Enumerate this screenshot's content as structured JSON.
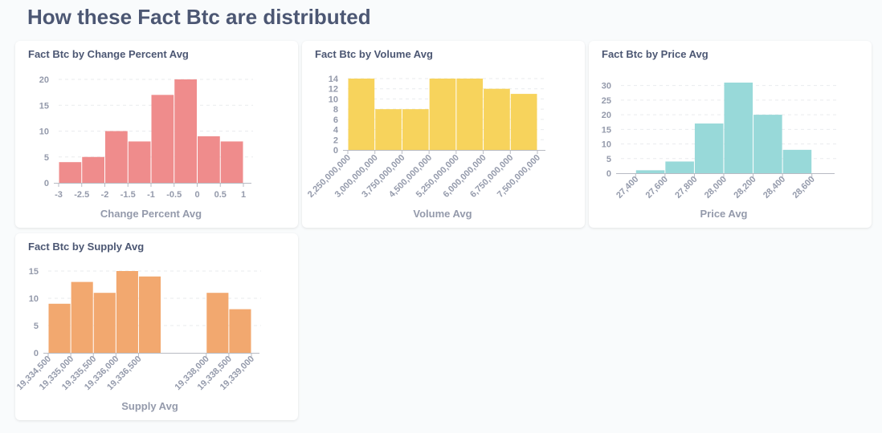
{
  "page": {
    "title": "How these Fact Btc are distributed"
  },
  "chart_data": [
    {
      "type": "bar",
      "title": "Fact Btc by Change Percent Avg",
      "xlabel": "Change Percent Avg",
      "ylabel": "",
      "color": "#ef8c8c",
      "x_ticks": [
        "-3",
        "-2.5",
        "-2",
        "-1.5",
        "-1",
        "-0.5",
        "0",
        "0.5",
        "1"
      ],
      "x_domain": [
        -3,
        1
      ],
      "bin_width": 0.5,
      "bins": [
        -3,
        -2.5,
        -2,
        -1.5,
        -1,
        -0.5,
        0,
        0.5
      ],
      "values": [
        4,
        5,
        10,
        8,
        17,
        20,
        9,
        8
      ],
      "y_ticks": [
        0,
        5,
        10,
        15,
        20
      ],
      "ylim": [
        0,
        20
      ],
      "rotate_ticks": false
    },
    {
      "type": "bar",
      "title": "Fact Btc by Volume Avg",
      "xlabel": "Volume Avg",
      "ylabel": "",
      "color": "#f7d35c",
      "x_ticks": [
        "2,250,000,000",
        "3,000,000,000",
        "3,750,000,000",
        "4,500,000,000",
        "5,250,000,000",
        "6,000,000,000",
        "6,750,000,000",
        "7,500,000,000"
      ],
      "x_domain": [
        2250000000,
        7500000000
      ],
      "bin_width": 750000000,
      "bins": [
        2250000000,
        3000000000,
        3750000000,
        4500000000,
        5250000000,
        6000000000,
        6750000000
      ],
      "values": [
        14,
        8,
        8,
        14,
        14,
        12,
        11
      ],
      "y_ticks": [
        0,
        2,
        4,
        6,
        8,
        10,
        12,
        14
      ],
      "ylim": [
        0,
        14
      ],
      "rotate_ticks": true
    },
    {
      "type": "bar",
      "title": "Fact Btc by Price Avg",
      "xlabel": "Price Avg",
      "ylabel": "",
      "color": "#98d9d9",
      "x_ticks": [
        "27,400",
        "27,600",
        "27,800",
        "28,000",
        "28,200",
        "28,400",
        "28,600"
      ],
      "x_domain": [
        27300,
        28700
      ],
      "bin_width": 200,
      "bins": [
        27400,
        27600,
        27800,
        28000,
        28200,
        28400
      ],
      "values": [
        1,
        4,
        17,
        31,
        20,
        8
      ],
      "y_ticks": [
        0,
        5,
        10,
        15,
        20,
        25,
        30
      ],
      "ylim": [
        0,
        31
      ],
      "rotate_ticks": true
    },
    {
      "type": "bar",
      "title": "Fact Btc by Supply Avg",
      "xlabel": "Supply Avg",
      "ylabel": "",
      "color": "#f2a86f",
      "x_ticks": [
        "19,334,500",
        "19,335,000",
        "19,335,500",
        "19,336,000",
        "19,336,500",
        "19,338,000",
        "19,338,500",
        "19,339,000"
      ],
      "x_domain": [
        19334500,
        19339000
      ],
      "bin_width": 500,
      "bins": [
        19334500,
        19335000,
        19335500,
        19336000,
        19336500,
        19338000,
        19338500
      ],
      "values": [
        9,
        13,
        11,
        15,
        14,
        11,
        8
      ],
      "y_ticks": [
        0,
        5,
        10,
        15
      ],
      "ylim": [
        0,
        15
      ],
      "rotate_ticks": true
    }
  ]
}
